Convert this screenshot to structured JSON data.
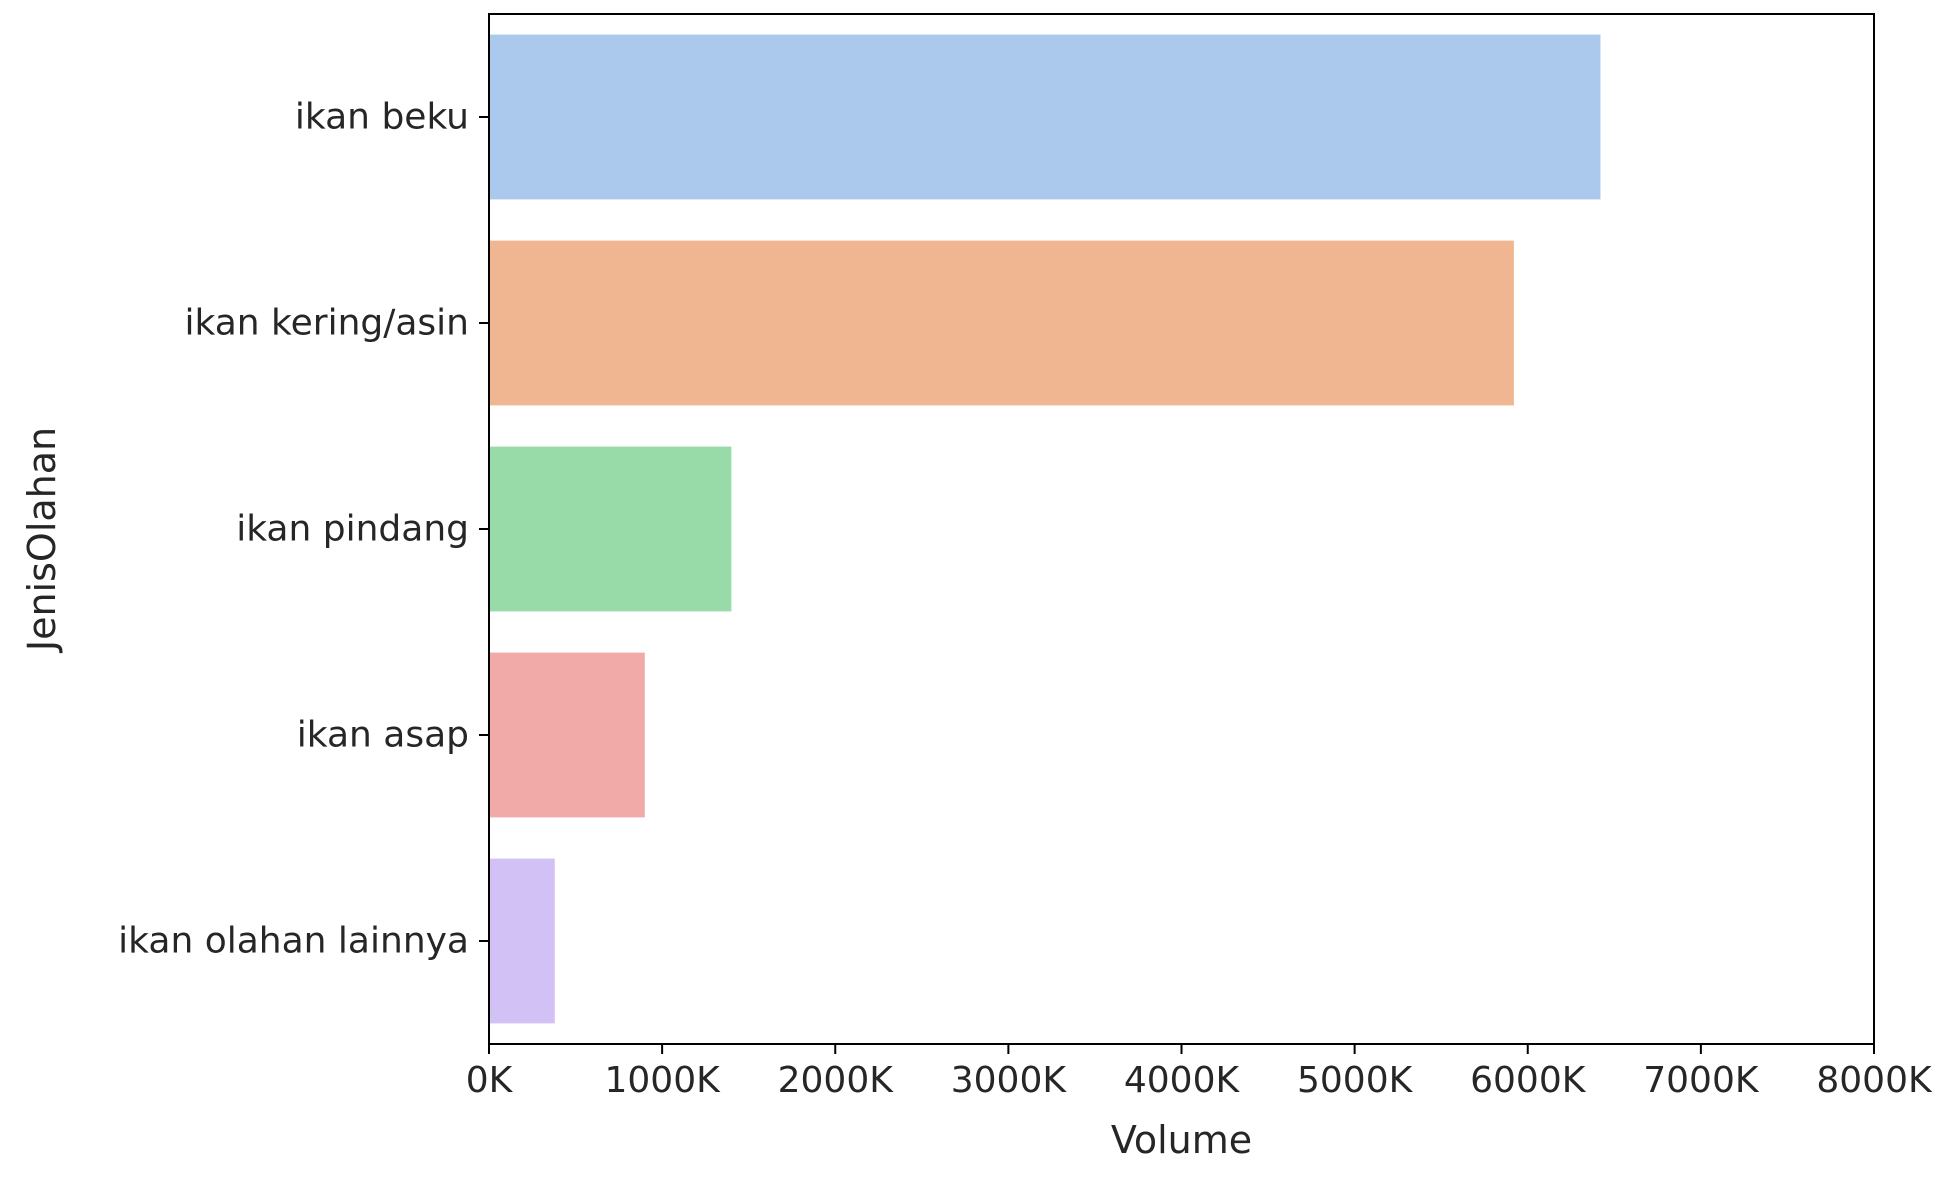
{
  "chart_data": {
    "type": "bar",
    "orientation": "horizontal",
    "categories": [
      "ikan beku",
      "ikan kering/asin",
      "ikan pindang",
      "ikan asap",
      "ikan olahan lainnya"
    ],
    "values": [
      6420000,
      5920000,
      1400000,
      900000,
      380000
    ],
    "colors": [
      "#abc9ec",
      "#f0b692",
      "#98dba8",
      "#f1aaa7",
      "#d2c1f4"
    ],
    "xlabel": "Volume",
    "ylabel": "JenisOlahan",
    "xlim": [
      0,
      8000000
    ],
    "x_ticks": [
      0,
      1000000,
      2000000,
      3000000,
      4000000,
      5000000,
      6000000,
      7000000,
      8000000
    ],
    "x_tick_labels": [
      "0K",
      "1000K",
      "2000K",
      "3000K",
      "4000K",
      "5000K",
      "6000K",
      "7000K",
      "8000K"
    ],
    "grid": false,
    "legend": "none"
  }
}
